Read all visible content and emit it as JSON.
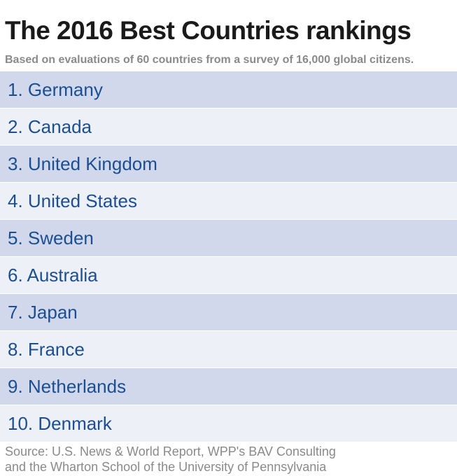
{
  "title": "The 2016 Best Countries rankings",
  "subtitle": "Based on evaluations of 60 countries from a survey of 16,000 global citizens.",
  "chart_data": {
    "type": "table",
    "title": "The 2016 Best Countries rankings",
    "subtitle": "Based on evaluations of 60 countries from a survey of 16,000 global citizens.",
    "rows": [
      {
        "rank": 1,
        "label": "1. Germany"
      },
      {
        "rank": 2,
        "label": "2. Canada"
      },
      {
        "rank": 3,
        "label": "3. United Kingdom"
      },
      {
        "rank": 4,
        "label": "4. United States"
      },
      {
        "rank": 5,
        "label": "5. Sweden"
      },
      {
        "rank": 6,
        "label": "6. Australia"
      },
      {
        "rank": 7,
        "label": "7. Japan"
      },
      {
        "rank": 8,
        "label": "8. France"
      },
      {
        "rank": 9,
        "label": "9. Netherlands"
      },
      {
        "rank": 10,
        "label": "10. Denmark"
      }
    ],
    "colors": {
      "band_dark": "#d2d8ec",
      "band_light": "#eef0f8",
      "label": "#1b4f91"
    }
  },
  "source_line1": "Source: U.S. News & World Report, WPP's BAV Consulting",
  "source_line2": "and the Wharton School of the University of Pennsylvania"
}
